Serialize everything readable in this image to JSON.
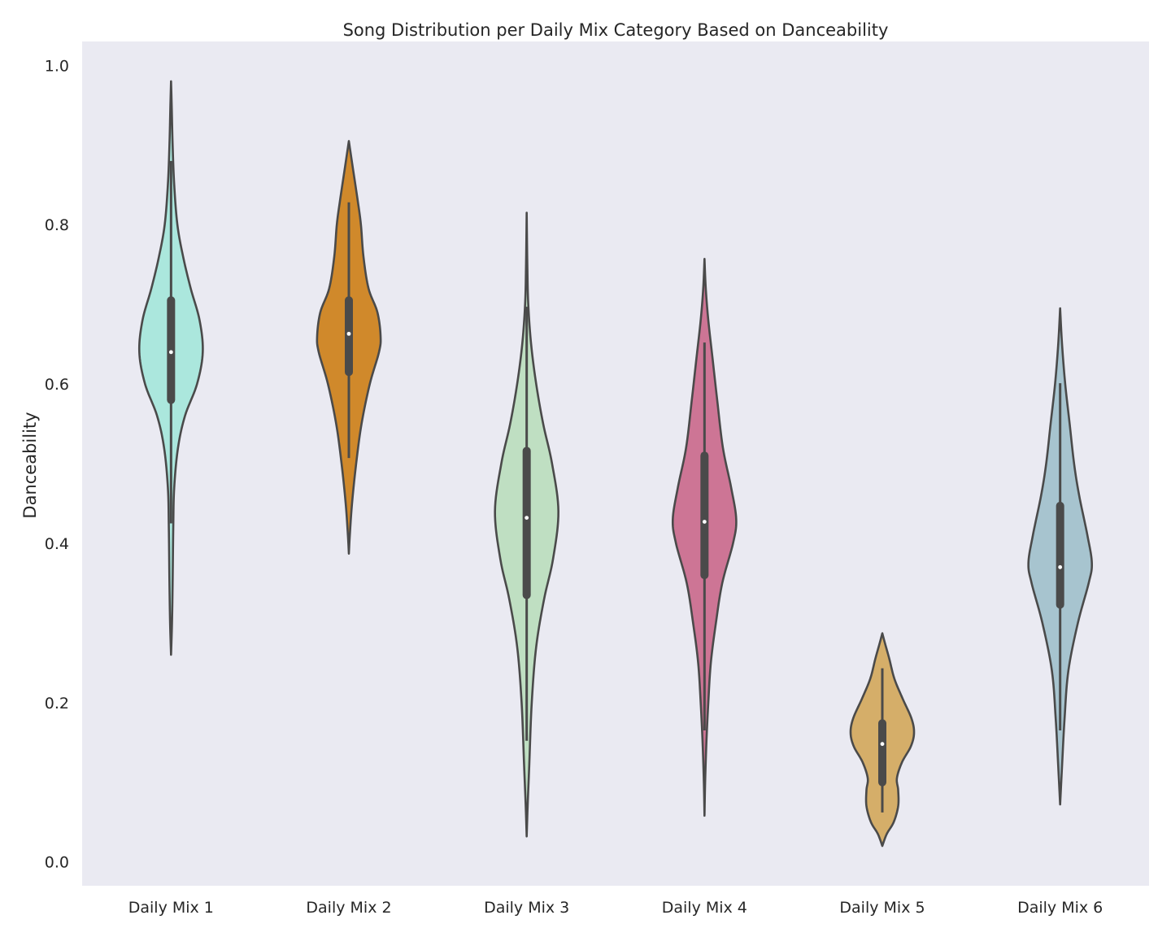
{
  "chart_data": {
    "type": "violin",
    "title": "Song Distribution per Daily Mix Category Based on Danceability",
    "xlabel": "",
    "ylabel": "Danceability",
    "ylim": [
      -0.03,
      1.03
    ],
    "yticks": [
      "0.0",
      "0.2",
      "0.4",
      "0.6",
      "0.8",
      "1.0"
    ],
    "grid": false,
    "background": "#eaeaf2",
    "outline_color": "#4a4a4a",
    "categories": [
      "Daily Mix 1",
      "Daily Mix 2",
      "Daily Mix 3",
      "Daily Mix 4",
      "Daily Mix 5",
      "Daily Mix 6"
    ],
    "series": [
      {
        "color": "#abe7dd",
        "min": 0.26,
        "max": 0.98,
        "q1": 0.58,
        "median": 0.64,
        "q3": 0.705,
        "whisker_low": 0.425,
        "whisker_high": 0.88,
        "density": [
          [
            0.26,
            0.0
          ],
          [
            0.3,
            0.03
          ],
          [
            0.35,
            0.05
          ],
          [
            0.42,
            0.07
          ],
          [
            0.47,
            0.1
          ],
          [
            0.52,
            0.22
          ],
          [
            0.56,
            0.44
          ],
          [
            0.6,
            0.82
          ],
          [
            0.64,
            1.0
          ],
          [
            0.68,
            0.9
          ],
          [
            0.72,
            0.62
          ],
          [
            0.76,
            0.38
          ],
          [
            0.8,
            0.2
          ],
          [
            0.85,
            0.1
          ],
          [
            0.9,
            0.05
          ],
          [
            0.95,
            0.02
          ],
          [
            0.98,
            0.0
          ]
        ]
      },
      {
        "color": "#d0892b",
        "min": 0.387,
        "max": 0.905,
        "q1": 0.615,
        "median": 0.663,
        "q3": 0.705,
        "whisker_low": 0.507,
        "whisker_high": 0.828,
        "density": [
          [
            0.387,
            0.0
          ],
          [
            0.41,
            0.03
          ],
          [
            0.45,
            0.1
          ],
          [
            0.5,
            0.23
          ],
          [
            0.55,
            0.4
          ],
          [
            0.6,
            0.66
          ],
          [
            0.64,
            0.95
          ],
          [
            0.66,
            1.0
          ],
          [
            0.69,
            0.9
          ],
          [
            0.72,
            0.62
          ],
          [
            0.76,
            0.46
          ],
          [
            0.8,
            0.38
          ],
          [
            0.83,
            0.28
          ],
          [
            0.87,
            0.13
          ],
          [
            0.905,
            0.0
          ]
        ]
      },
      {
        "color": "#bfdfc2",
        "min": 0.032,
        "max": 0.815,
        "q1": 0.335,
        "median": 0.432,
        "q3": 0.516,
        "whisker_low": 0.152,
        "whisker_high": 0.697,
        "density": [
          [
            0.032,
            0.0
          ],
          [
            0.07,
            0.03
          ],
          [
            0.12,
            0.08
          ],
          [
            0.2,
            0.16
          ],
          [
            0.27,
            0.3
          ],
          [
            0.33,
            0.55
          ],
          [
            0.38,
            0.83
          ],
          [
            0.44,
            1.0
          ],
          [
            0.5,
            0.8
          ],
          [
            0.55,
            0.52
          ],
          [
            0.6,
            0.3
          ],
          [
            0.65,
            0.14
          ],
          [
            0.7,
            0.05
          ],
          [
            0.75,
            0.02
          ],
          [
            0.815,
            0.0
          ]
        ]
      },
      {
        "color": "#cd7595",
        "min": 0.058,
        "max": 0.757,
        "q1": 0.36,
        "median": 0.427,
        "q3": 0.51,
        "whisker_low": 0.165,
        "whisker_high": 0.652,
        "density": [
          [
            0.058,
            0.0
          ],
          [
            0.1,
            0.02
          ],
          [
            0.15,
            0.06
          ],
          [
            0.2,
            0.12
          ],
          [
            0.25,
            0.2
          ],
          [
            0.3,
            0.36
          ],
          [
            0.35,
            0.56
          ],
          [
            0.4,
            0.9
          ],
          [
            0.43,
            1.0
          ],
          [
            0.47,
            0.84
          ],
          [
            0.52,
            0.58
          ],
          [
            0.58,
            0.4
          ],
          [
            0.63,
            0.26
          ],
          [
            0.68,
            0.12
          ],
          [
            0.72,
            0.04
          ],
          [
            0.757,
            0.0
          ]
        ]
      },
      {
        "color": "#d5ae69",
        "min": 0.02,
        "max": 0.287,
        "q1": 0.1,
        "median": 0.148,
        "q3": 0.174,
        "whisker_low": 0.062,
        "whisker_high": 0.243,
        "density": [
          [
            0.02,
            0.0
          ],
          [
            0.035,
            0.14
          ],
          [
            0.05,
            0.36
          ],
          [
            0.07,
            0.5
          ],
          [
            0.09,
            0.5
          ],
          [
            0.105,
            0.46
          ],
          [
            0.125,
            0.62
          ],
          [
            0.145,
            0.9
          ],
          [
            0.162,
            1.0
          ],
          [
            0.18,
            0.92
          ],
          [
            0.205,
            0.64
          ],
          [
            0.23,
            0.38
          ],
          [
            0.255,
            0.22
          ],
          [
            0.275,
            0.08
          ],
          [
            0.287,
            0.0
          ]
        ]
      },
      {
        "color": "#a7c4cf",
        "min": 0.072,
        "max": 0.695,
        "q1": 0.323,
        "median": 0.37,
        "q3": 0.447,
        "whisker_low": 0.165,
        "whisker_high": 0.601,
        "density": [
          [
            0.072,
            0.0
          ],
          [
            0.12,
            0.06
          ],
          [
            0.18,
            0.14
          ],
          [
            0.24,
            0.26
          ],
          [
            0.3,
            0.56
          ],
          [
            0.35,
            0.9
          ],
          [
            0.375,
            1.0
          ],
          [
            0.41,
            0.86
          ],
          [
            0.46,
            0.6
          ],
          [
            0.5,
            0.44
          ],
          [
            0.55,
            0.3
          ],
          [
            0.6,
            0.16
          ],
          [
            0.65,
            0.06
          ],
          [
            0.695,
            0.0
          ]
        ]
      }
    ]
  }
}
